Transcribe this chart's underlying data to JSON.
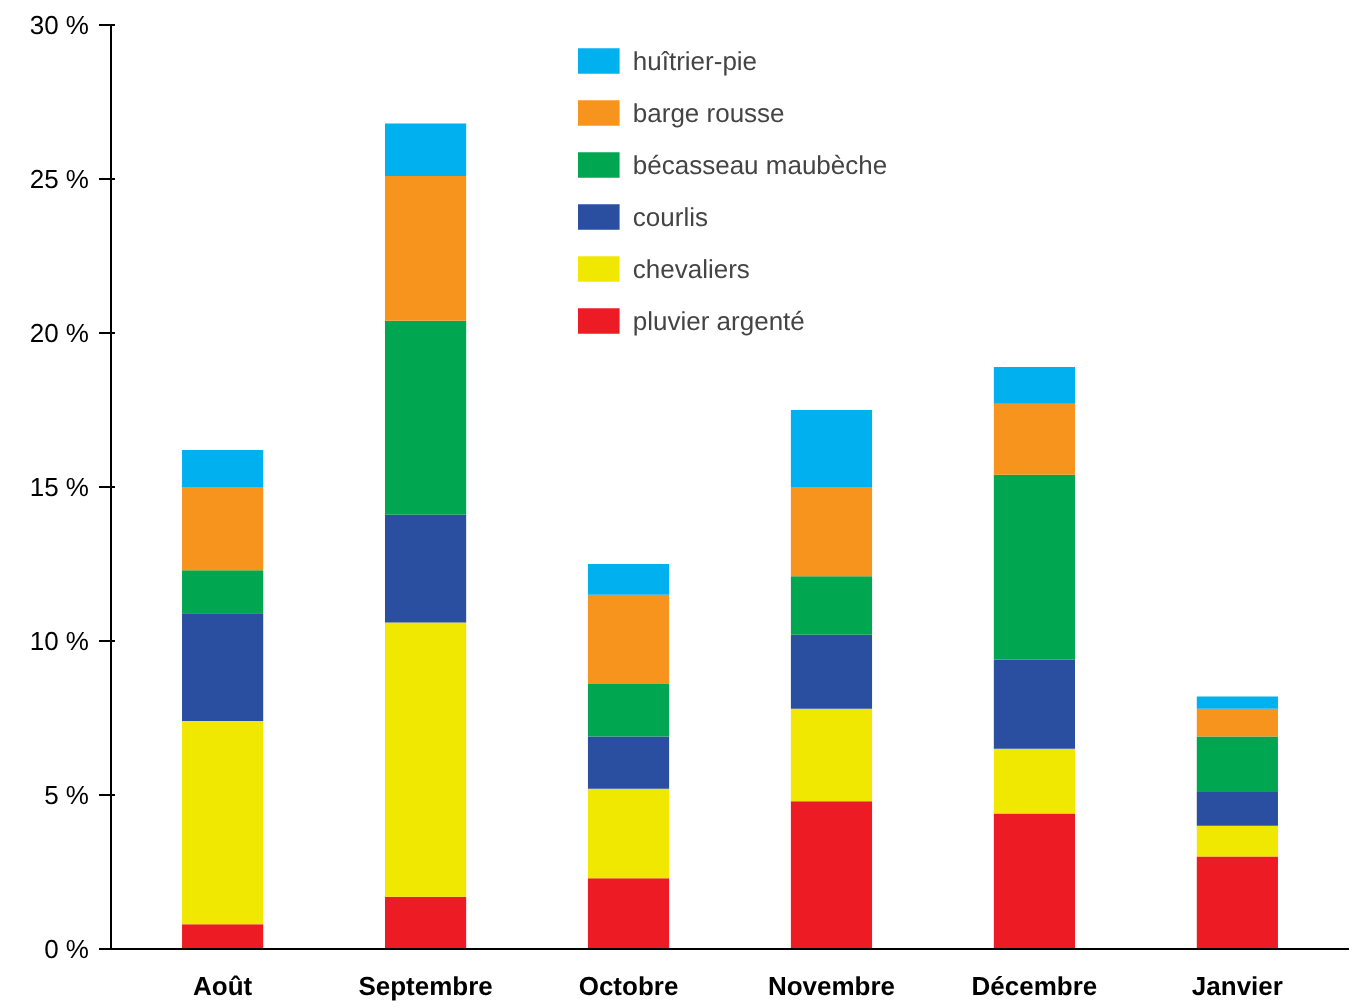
{
  "chart_data": {
    "type": "bar",
    "stacked": true,
    "categories": [
      "Août",
      "Septembre",
      "Octobre",
      "Novembre",
      "Décembre",
      "Janvier"
    ],
    "series": [
      {
        "name": "pluvier argenté",
        "color": "#ed1c24",
        "values": [
          0.8,
          1.7,
          2.3,
          4.8,
          4.4,
          3.0
        ]
      },
      {
        "name": "chevaliers",
        "color": "#f0e800",
        "values": [
          6.6,
          8.9,
          2.9,
          3.0,
          2.1,
          1.0
        ]
      },
      {
        "name": "courlis",
        "color": "#2a4ea0",
        "values": [
          3.5,
          3.5,
          1.7,
          2.4,
          2.9,
          1.1
        ]
      },
      {
        "name": "bécasseau maubèche",
        "color": "#00a650",
        "values": [
          1.4,
          6.3,
          1.7,
          1.9,
          6.0,
          1.8
        ]
      },
      {
        "name": "barge rousse",
        "color": "#f7941d",
        "values": [
          2.7,
          4.7,
          2.9,
          2.9,
          2.3,
          0.9
        ]
      },
      {
        "name": "huîtrier-pie",
        "color": "#00b0ef",
        "values": [
          1.2,
          1.7,
          1.0,
          2.5,
          1.2,
          0.4
        ]
      }
    ],
    "ylim": [
      0,
      30
    ],
    "yticks": [
      {
        "value": 0,
        "label": "0 %"
      },
      {
        "value": 5,
        "label": "5 %"
      },
      {
        "value": 10,
        "label": "10 %"
      },
      {
        "value": 15,
        "label": "15 %"
      },
      {
        "value": 20,
        "label": "20 %"
      },
      {
        "value": 25,
        "label": "25 %"
      },
      {
        "value": 30,
        "label": "30 %"
      }
    ],
    "grid": false,
    "legend": "top"
  }
}
